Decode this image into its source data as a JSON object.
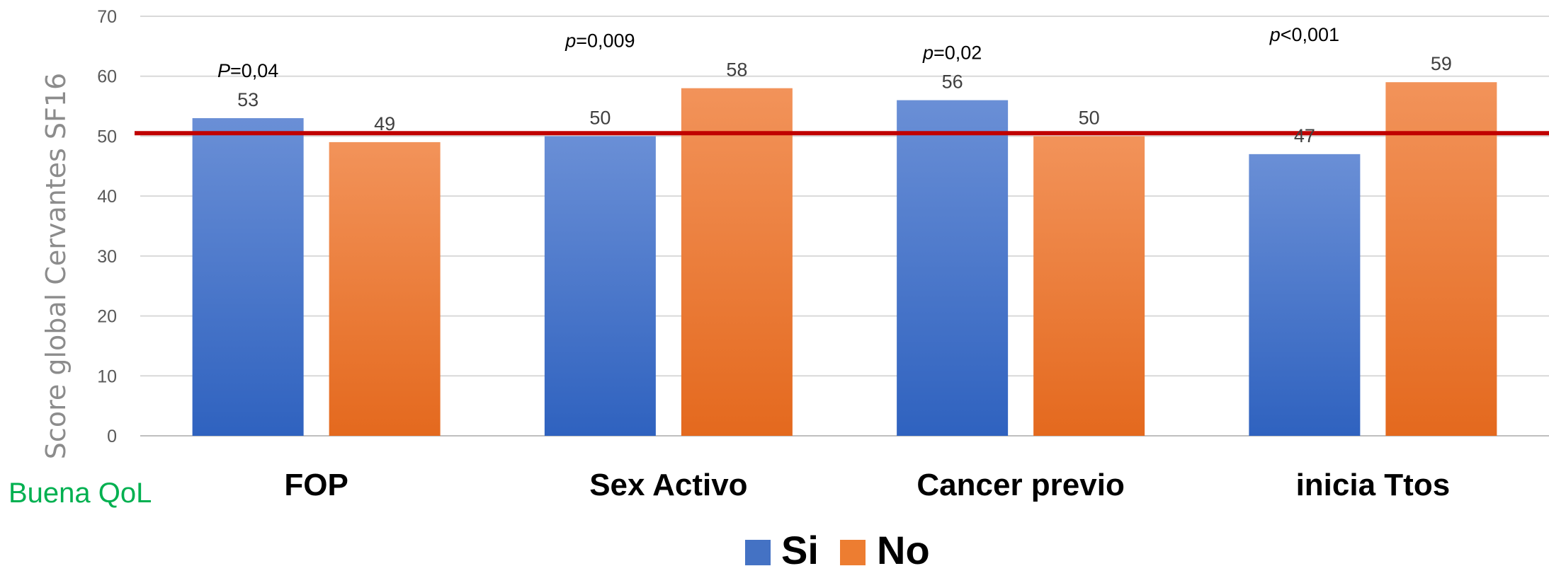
{
  "chart_data": {
    "type": "bar",
    "ylabel": "Score global Cervantes SF16",
    "ylim": [
      0,
      70
    ],
    "yticks": [
      0,
      10,
      20,
      30,
      40,
      50,
      60,
      70
    ],
    "categories": [
      "FOP",
      "Sex Activo",
      "Cancer previo",
      "inicia Ttos"
    ],
    "series": [
      {
        "name": "Si",
        "values": [
          53,
          50,
          56,
          47
        ],
        "color": "#4472c4"
      },
      {
        "name": "No",
        "values": [
          49,
          58,
          50,
          59
        ],
        "color": "#ed7d31"
      }
    ],
    "p_values": [
      {
        "symbol": "P",
        "rest": "=0,04"
      },
      {
        "symbol": "p",
        "rest": "=0,009"
      },
      {
        "symbol": "p",
        "rest": "=0,02"
      },
      {
        "symbol": "p",
        "rest": "<0,001"
      }
    ],
    "reference_line": {
      "value": 50.5,
      "color": "#c00000"
    },
    "annotation": "Buena QoL",
    "grid": true,
    "legend_position": "bottom"
  }
}
